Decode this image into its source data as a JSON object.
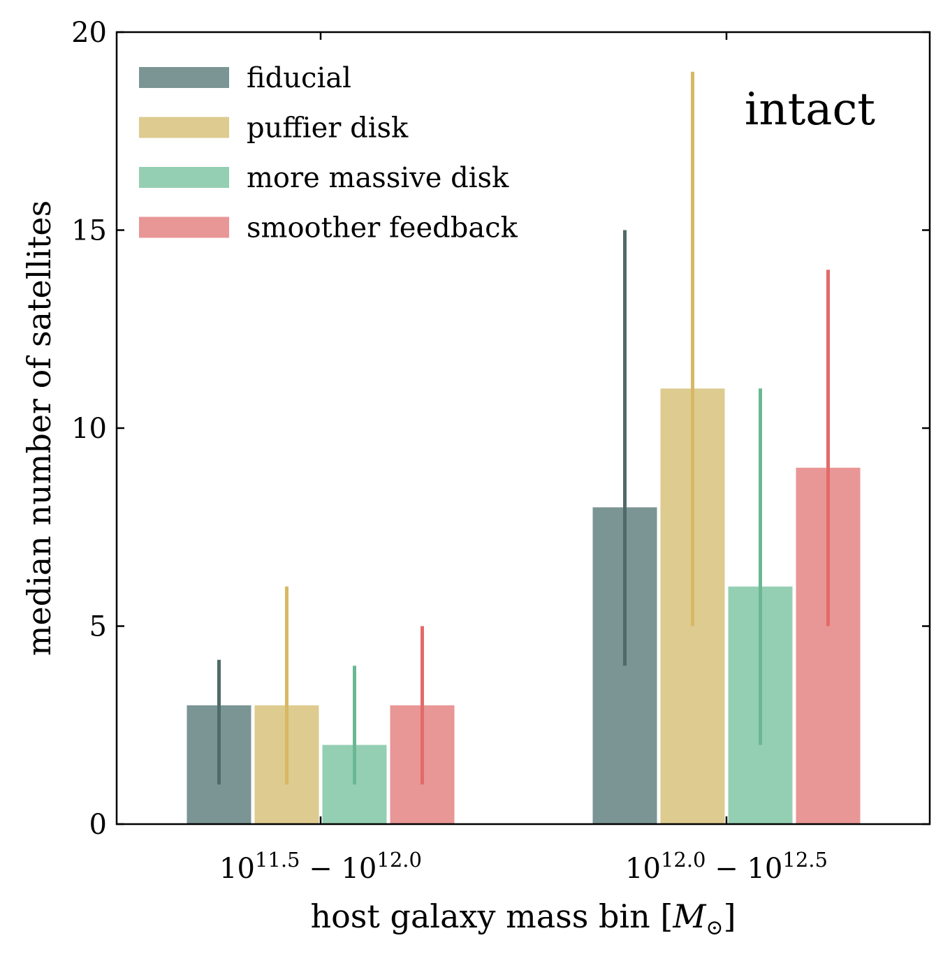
{
  "chart_data": {
    "type": "bar",
    "title": "",
    "annotation": "intact",
    "xlabel": "host galaxy mass bin [",
    "xlabel_symbol": "M",
    "xlabel_subscript": "⊙",
    "xlabel_close": "]",
    "ylabel": "median number of satellites",
    "ylim": [
      0,
      20
    ],
    "yticks": [
      0,
      5,
      10,
      15,
      20
    ],
    "grid": false,
    "legend_position": "top-left",
    "categories": [
      {
        "base": "10",
        "exp1": "11.5",
        "sep": " − ",
        "base2": "10",
        "exp2": "12.0"
      },
      {
        "base": "10",
        "exp1": "12.0",
        "sep": " − ",
        "base2": "10",
        "exp2": "12.5"
      }
    ],
    "series": [
      {
        "name": "fiducial",
        "color": "#7b9494",
        "err_color": "#4f6b69",
        "values": [
          3,
          8
        ],
        "err_low": [
          1,
          4
        ],
        "err_high": [
          4.15,
          15
        ]
      },
      {
        "name": "puffier disk",
        "color": "#ddcb90",
        "err_color": "#d8b865",
        "values": [
          3,
          11
        ],
        "err_low": [
          1,
          5
        ],
        "err_high": [
          6,
          19
        ]
      },
      {
        "name": "more massive disk",
        "color": "#95cfb3",
        "err_color": "#6ab893",
        "values": [
          2,
          6
        ],
        "err_low": [
          1,
          2
        ],
        "err_high": [
          4,
          11
        ]
      },
      {
        "name": "smoother feedback",
        "color": "#e99696",
        "err_color": "#e36a6a",
        "values": [
          3,
          9
        ],
        "err_low": [
          1,
          5
        ],
        "err_high": [
          5,
          14
        ]
      }
    ]
  }
}
